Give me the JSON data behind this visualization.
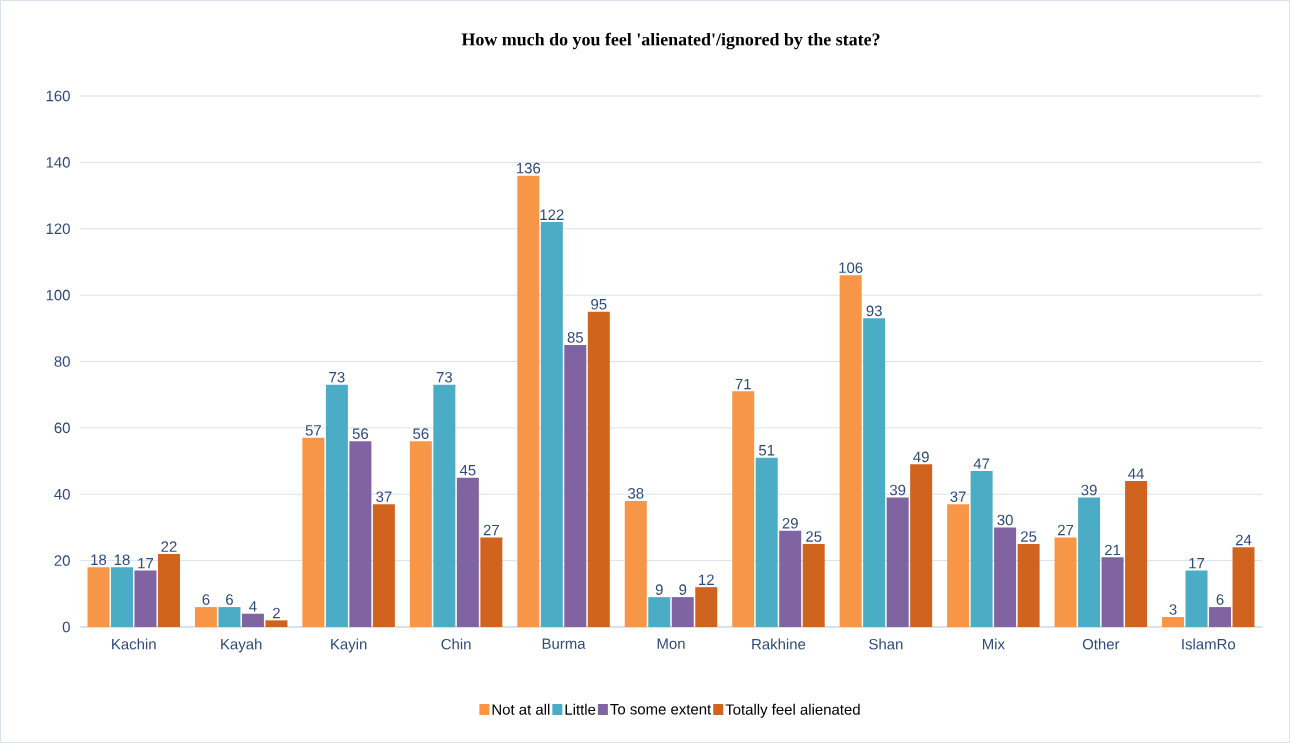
{
  "chart_data": {
    "type": "bar",
    "title": "How much do you feel 'alienated'/ignored by the state?",
    "categories": [
      "Kachin",
      "Kayah",
      "Kayin",
      "Chin",
      "Burma",
      "Mon",
      "Rakhine",
      "Shan",
      "Mix",
      "Other",
      "IslamRo"
    ],
    "series": [
      {
        "name": "Not at all",
        "color": "#f79646",
        "values": [
          18,
          6,
          57,
          56,
          136,
          38,
          71,
          106,
          37,
          27,
          3
        ]
      },
      {
        "name": "Little",
        "color": "#4bacc6",
        "values": [
          18,
          6,
          73,
          73,
          122,
          9,
          51,
          93,
          47,
          39,
          17
        ]
      },
      {
        "name": "To some extent",
        "color": "#8064a2",
        "values": [
          17,
          4,
          56,
          45,
          85,
          9,
          29,
          39,
          30,
          21,
          6
        ]
      },
      {
        "name": "Totally feel alienated",
        "color": "#d0641e",
        "values": [
          22,
          2,
          37,
          27,
          95,
          12,
          25,
          49,
          25,
          44,
          24
        ]
      }
    ],
    "ylim": [
      0,
      160
    ],
    "yticks": [
      0,
      20,
      40,
      60,
      80,
      100,
      120,
      140,
      160
    ],
    "grid": "y",
    "legend": "bottom",
    "data_labels": true
  }
}
